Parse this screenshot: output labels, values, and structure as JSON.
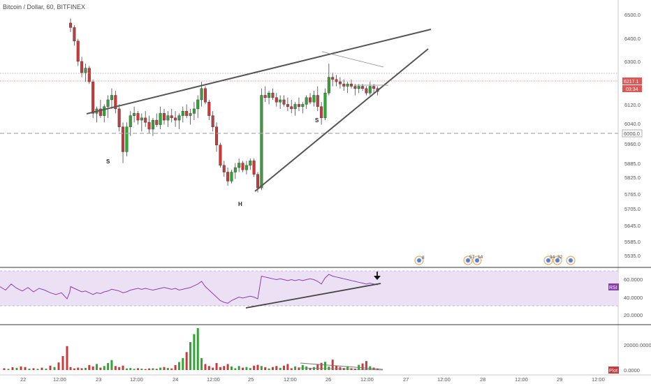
{
  "chart_title": "Bitcoin / Dollar, 60, BITFINEX",
  "colors": {
    "up": "#33a336",
    "down": "#c93a3a",
    "rsi": "#8a3fb0",
    "rsi_band": "#ece0f5",
    "trendline": "#555555",
    "price_line": "#e05555",
    "level_line": "#999999"
  },
  "price_axis": {
    "ticks": [
      "6500.0",
      "6400.0",
      "6300.0",
      "6217.1",
      "6120.0",
      "6040.0",
      "6000.0",
      "5960.0",
      "5885.0",
      "5825.0",
      "5765.0",
      "5705.0",
      "5645.0",
      "5585.0",
      "5535.0"
    ],
    "current_price_label": "6217.1",
    "countdown_label": "03:34",
    "level_label": "6000.0"
  },
  "rsi_panel": {
    "badge": "RSI",
    "ticks": [
      "60.0000",
      "40.0000",
      "20.0000"
    ]
  },
  "volume_panel": {
    "badge": "Plot",
    "ticks": [
      "20000.0000",
      "0.0000"
    ]
  },
  "time_axis": [
    "22",
    "12:00",
    "23",
    "12:00",
    "24",
    "12:00",
    "25",
    "12:00",
    "26",
    "12:00",
    "27",
    "12:00",
    "28",
    "12:00",
    "29",
    "12:00"
  ],
  "annotations": [
    "S",
    "H",
    "S"
  ],
  "event_badges": [
    "8",
    "57",
    "14",
    "34",
    "32"
  ],
  "chart_data": {
    "type": "candlestick",
    "title": "Bitcoin / Dollar, 60, BITFINEX",
    "ylim": [
      5500,
      6560
    ],
    "ohlc": [
      [
        6520,
        6540,
        6480,
        6500
      ],
      [
        6500,
        6510,
        6420,
        6440
      ],
      [
        6440,
        6450,
        6330,
        6350
      ],
      [
        6350,
        6370,
        6280,
        6300
      ],
      [
        6300,
        6340,
        6260,
        6320
      ],
      [
        6320,
        6330,
        6250,
        6260
      ],
      [
        6260,
        6270,
        6100,
        6120
      ],
      [
        6120,
        6150,
        6080,
        6140
      ],
      [
        6140,
        6180,
        6100,
        6110
      ],
      [
        6110,
        6160,
        6080,
        6150
      ],
      [
        6150,
        6200,
        6100,
        6180
      ],
      [
        6180,
        6230,
        6140,
        6200
      ],
      [
        6200,
        6220,
        6120,
        6140
      ],
      [
        6140,
        6160,
        6040,
        6060
      ],
      [
        6060,
        6080,
        5900,
        5950
      ],
      [
        5950,
        6080,
        5930,
        6060
      ],
      [
        6060,
        6130,
        6020,
        6110
      ],
      [
        6110,
        6150,
        6080,
        6120
      ],
      [
        6120,
        6130,
        6070,
        6090
      ],
      [
        6090,
        6120,
        6040,
        6100
      ],
      [
        6100,
        6130,
        6060,
        6080
      ],
      [
        6080,
        6110,
        6030,
        6050
      ],
      [
        6050,
        6100,
        6020,
        6090
      ],
      [
        6090,
        6120,
        6060,
        6070
      ],
      [
        6070,
        6150,
        6050,
        6120
      ],
      [
        6120,
        6140,
        6070,
        6090
      ],
      [
        6090,
        6130,
        6060,
        6110
      ],
      [
        6110,
        6140,
        6080,
        6100
      ],
      [
        6100,
        6130,
        6060,
        6090
      ],
      [
        6090,
        6120,
        6050,
        6110
      ],
      [
        6110,
        6150,
        6080,
        6130
      ],
      [
        6130,
        6160,
        6100,
        6110
      ],
      [
        6110,
        6140,
        6070,
        6120
      ],
      [
        6120,
        6170,
        6090,
        6140
      ],
      [
        6140,
        6200,
        6100,
        6180
      ],
      [
        6180,
        6260,
        6150,
        6230
      ],
      [
        6230,
        6240,
        6160,
        6170
      ],
      [
        6170,
        6180,
        6090,
        6110
      ],
      [
        6110,
        6130,
        6040,
        6060
      ],
      [
        6060,
        6080,
        5950,
        5980
      ],
      [
        5980,
        5990,
        5880,
        5890
      ],
      [
        5890,
        5910,
        5840,
        5860
      ],
      [
        5860,
        5880,
        5800,
        5820
      ],
      [
        5820,
        5870,
        5810,
        5860
      ],
      [
        5860,
        5900,
        5830,
        5880
      ],
      [
        5880,
        5920,
        5860,
        5900
      ],
      [
        5900,
        5910,
        5860,
        5870
      ],
      [
        5870,
        5910,
        5850,
        5890
      ],
      [
        5890,
        5920,
        5870,
        5910
      ],
      [
        5910,
        5920,
        5840,
        5850
      ],
      [
        5850,
        5860,
        5770,
        5790
      ],
      [
        5790,
        6230,
        5780,
        6200
      ],
      [
        6200,
        6240,
        6170,
        6190
      ],
      [
        6190,
        6220,
        6160,
        6210
      ],
      [
        6210,
        6230,
        6180,
        6190
      ],
      [
        6190,
        6210,
        6150,
        6170
      ],
      [
        6170,
        6200,
        6140,
        6180
      ],
      [
        6180,
        6200,
        6150,
        6160
      ],
      [
        6160,
        6190,
        6130,
        6150
      ],
      [
        6150,
        6180,
        6120,
        6140
      ],
      [
        6140,
        6170,
        6110,
        6160
      ],
      [
        6160,
        6190,
        6130,
        6150
      ],
      [
        6150,
        6170,
        6120,
        6160
      ],
      [
        6160,
        6200,
        6140,
        6190
      ],
      [
        6190,
        6210,
        6160,
        6170
      ],
      [
        6170,
        6220,
        6150,
        6200
      ],
      [
        6200,
        6240,
        6130,
        6150
      ],
      [
        6150,
        6170,
        6070,
        6100
      ],
      [
        6100,
        6230,
        6090,
        6210
      ],
      [
        6210,
        6340,
        6200,
        6280
      ],
      [
        6280,
        6300,
        6240,
        6270
      ],
      [
        6270,
        6290,
        6240,
        6260
      ],
      [
        6260,
        6280,
        6230,
        6250
      ],
      [
        6250,
        6270,
        6220,
        6240
      ],
      [
        6240,
        6260,
        6210,
        6250
      ],
      [
        6250,
        6270,
        6230,
        6240
      ],
      [
        6240,
        6250,
        6200,
        6230
      ],
      [
        6230,
        6250,
        6210,
        6240
      ],
      [
        6240,
        6250,
        6220,
        6230
      ],
      [
        6230,
        6240,
        6200,
        6210
      ],
      [
        6210,
        6260,
        6200,
        6240
      ],
      [
        6240,
        6250,
        6210,
        6230
      ],
      [
        6230,
        6240,
        6200,
        6217
      ]
    ],
    "rsi": [
      52,
      50,
      48,
      46,
      47,
      45,
      43,
      45,
      44,
      46,
      47,
      49,
      48,
      47,
      45,
      46,
      48,
      49,
      50,
      49,
      50,
      49,
      48,
      49,
      50,
      51,
      50,
      49,
      50,
      48,
      49,
      50,
      51,
      53,
      55,
      58,
      52,
      48,
      44,
      40,
      36,
      34,
      33,
      36,
      38,
      40,
      39,
      40,
      41,
      40,
      38,
      64,
      63,
      62,
      61,
      60,
      61,
      60,
      59,
      60,
      59,
      60,
      59,
      60,
      61,
      60,
      58,
      55,
      62,
      66,
      64,
      63,
      62,
      61,
      60,
      59,
      58,
      57,
      56,
      55,
      56,
      55,
      54
    ],
    "volume": [
      1500,
      800,
      1200,
      900,
      1100,
      2500,
      1800,
      3000,
      1200,
      2000,
      3500,
      5000,
      2000,
      1500,
      2200,
      800,
      1000,
      600,
      900,
      700,
      500,
      800,
      900,
      600,
      1200,
      1500,
      1000,
      800,
      2500,
      4000,
      6000,
      9000,
      14000,
      18000,
      21000,
      6000,
      3000,
      2000,
      1200,
      3500,
      1500,
      2000,
      3000,
      1800,
      900,
      2000,
      1200,
      1500,
      1000,
      2200,
      2600,
      2000,
      1400,
      800,
      1500,
      2000,
      1100,
      2200,
      3000,
      900,
      1800,
      1300,
      2500,
      1800,
      1100,
      1500,
      2900,
      3600,
      4100,
      1700,
      5200,
      2200,
      1500,
      1000,
      1900,
      900,
      700,
      2600,
      3300,
      4500,
      1900,
      1200,
      800
    ],
    "ylabel": "",
    "xlabel": ""
  }
}
